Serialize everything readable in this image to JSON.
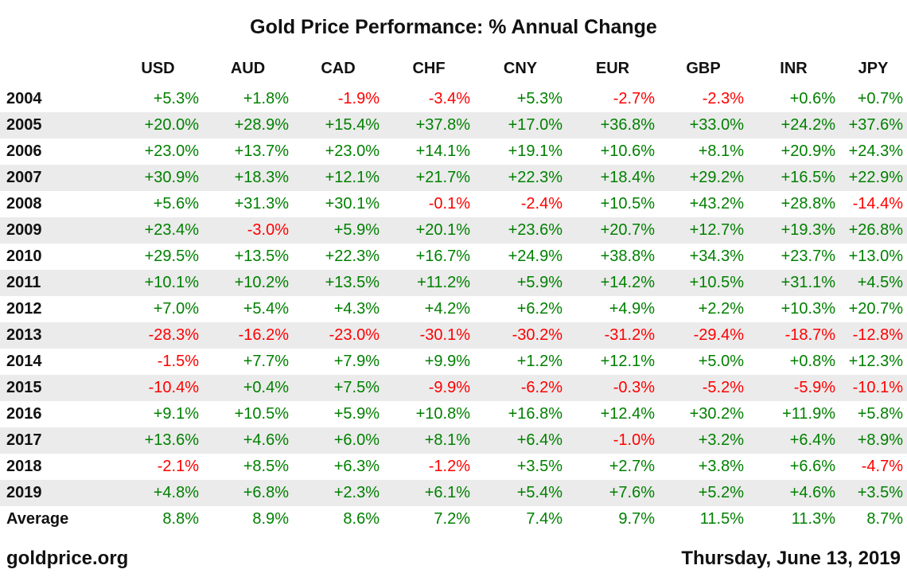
{
  "title": "Gold Price Performance: % Annual Change",
  "footer": {
    "site": "goldprice.org",
    "date": "Thursday, June 13, 2019"
  },
  "colors": {
    "positive": "#008000",
    "negative": "#ff0000",
    "row_stripe": "#ebebeb",
    "text": "#111111"
  },
  "chart_data": {
    "type": "table",
    "title": "Gold Price Performance: % Annual Change",
    "row_header_label": "",
    "columns": [
      "USD",
      "AUD",
      "CAD",
      "CHF",
      "CNY",
      "EUR",
      "GBP",
      "INR",
      "JPY"
    ],
    "rows": [
      {
        "label": "2004",
        "values": [
          "+5.3%",
          "+1.8%",
          "-1.9%",
          "-3.4%",
          "+5.3%",
          "-2.7%",
          "-2.3%",
          "+0.6%",
          "+0.7%"
        ]
      },
      {
        "label": "2005",
        "values": [
          "+20.0%",
          "+28.9%",
          "+15.4%",
          "+37.8%",
          "+17.0%",
          "+36.8%",
          "+33.0%",
          "+24.2%",
          "+37.6%"
        ]
      },
      {
        "label": "2006",
        "values": [
          "+23.0%",
          "+13.7%",
          "+23.0%",
          "+14.1%",
          "+19.1%",
          "+10.6%",
          "+8.1%",
          "+20.9%",
          "+24.3%"
        ]
      },
      {
        "label": "2007",
        "values": [
          "+30.9%",
          "+18.3%",
          "+12.1%",
          "+21.7%",
          "+22.3%",
          "+18.4%",
          "+29.2%",
          "+16.5%",
          "+22.9%"
        ]
      },
      {
        "label": "2008",
        "values": [
          "+5.6%",
          "+31.3%",
          "+30.1%",
          "-0.1%",
          "-2.4%",
          "+10.5%",
          "+43.2%",
          "+28.8%",
          "-14.4%"
        ]
      },
      {
        "label": "2009",
        "values": [
          "+23.4%",
          "-3.0%",
          "+5.9%",
          "+20.1%",
          "+23.6%",
          "+20.7%",
          "+12.7%",
          "+19.3%",
          "+26.8%"
        ]
      },
      {
        "label": "2010",
        "values": [
          "+29.5%",
          "+13.5%",
          "+22.3%",
          "+16.7%",
          "+24.9%",
          "+38.8%",
          "+34.3%",
          "+23.7%",
          "+13.0%"
        ]
      },
      {
        "label": "2011",
        "values": [
          "+10.1%",
          "+10.2%",
          "+13.5%",
          "+11.2%",
          "+5.9%",
          "+14.2%",
          "+10.5%",
          "+31.1%",
          "+4.5%"
        ]
      },
      {
        "label": "2012",
        "values": [
          "+7.0%",
          "+5.4%",
          "+4.3%",
          "+4.2%",
          "+6.2%",
          "+4.9%",
          "+2.2%",
          "+10.3%",
          "+20.7%"
        ]
      },
      {
        "label": "2013",
        "values": [
          "-28.3%",
          "-16.2%",
          "-23.0%",
          "-30.1%",
          "-30.2%",
          "-31.2%",
          "-29.4%",
          "-18.7%",
          "-12.8%"
        ]
      },
      {
        "label": "2014",
        "values": [
          "-1.5%",
          "+7.7%",
          "+7.9%",
          "+9.9%",
          "+1.2%",
          "+12.1%",
          "+5.0%",
          "+0.8%",
          "+12.3%"
        ]
      },
      {
        "label": "2015",
        "values": [
          "-10.4%",
          "+0.4%",
          "+7.5%",
          "-9.9%",
          "-6.2%",
          "-0.3%",
          "-5.2%",
          "-5.9%",
          "-10.1%"
        ]
      },
      {
        "label": "2016",
        "values": [
          "+9.1%",
          "+10.5%",
          "+5.9%",
          "+10.8%",
          "+16.8%",
          "+12.4%",
          "+30.2%",
          "+11.9%",
          "+5.8%"
        ]
      },
      {
        "label": "2017",
        "values": [
          "+13.6%",
          "+4.6%",
          "+6.0%",
          "+8.1%",
          "+6.4%",
          "-1.0%",
          "+3.2%",
          "+6.4%",
          "+8.9%"
        ]
      },
      {
        "label": "2018",
        "values": [
          "-2.1%",
          "+8.5%",
          "+6.3%",
          "-1.2%",
          "+3.5%",
          "+2.7%",
          "+3.8%",
          "+6.6%",
          "-4.7%"
        ]
      },
      {
        "label": "2019",
        "values": [
          "+4.8%",
          "+6.8%",
          "+2.3%",
          "+6.1%",
          "+5.4%",
          "+7.6%",
          "+5.2%",
          "+4.6%",
          "+3.5%"
        ]
      },
      {
        "label": "Average",
        "values": [
          "8.8%",
          "8.9%",
          "8.6%",
          "7.2%",
          "7.4%",
          "9.7%",
          "11.5%",
          "11.3%",
          "8.7%"
        ]
      }
    ]
  }
}
